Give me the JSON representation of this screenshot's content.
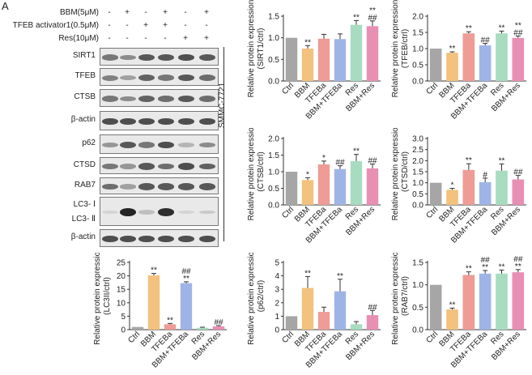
{
  "panel_letter": "A",
  "treatments": [
    {
      "label": "BBM(5μM)",
      "signs": [
        "-",
        "+",
        "-",
        "+",
        "-",
        "+"
      ]
    },
    {
      "label": "TFEB activator1(0.5μM)",
      "signs": [
        "-",
        "-",
        "+",
        "+",
        "-",
        "-"
      ]
    },
    {
      "label": "Res(10μM)",
      "signs": [
        "-",
        "-",
        "-",
        "-",
        "+",
        "+"
      ]
    }
  ],
  "blots": [
    {
      "label": "SIRT1",
      "intensity": [
        0.55,
        0.45,
        0.7,
        0.7,
        0.75,
        0.7
      ]
    },
    {
      "label": "TFEB",
      "intensity": [
        0.5,
        0.35,
        0.65,
        0.55,
        0.7,
        0.6
      ]
    },
    {
      "label": "CTSB",
      "intensity": [
        0.55,
        0.45,
        0.65,
        0.6,
        0.7,
        0.6
      ]
    },
    {
      "label": "β-actin",
      "intensity": [
        0.75,
        0.75,
        0.75,
        0.75,
        0.75,
        0.75
      ]
    },
    {
      "label": "p62",
      "intensity": [
        0.4,
        0.7,
        0.55,
        0.75,
        0.25,
        0.45
      ]
    },
    {
      "label": "CTSD",
      "intensity": [
        0.55,
        0.4,
        0.7,
        0.6,
        0.75,
        0.65
      ]
    },
    {
      "label": "RAB7",
      "intensity": [
        0.6,
        0.35,
        0.7,
        0.7,
        0.7,
        0.7
      ]
    },
    {
      "label": "LC3- Ⅰ\nLC3- Ⅱ",
      "intensity": [
        0.1,
        0.95,
        0.2,
        0.9,
        0.1,
        0.15
      ]
    },
    {
      "label": "β-actin",
      "intensity": [
        0.75,
        0.75,
        0.75,
        0.75,
        0.75,
        0.75
      ]
    }
  ],
  "cell_line": "SMMC-7721",
  "colors": [
    "#a6a6a6",
    "#f2c27e",
    "#ee9c95",
    "#9fb4e6",
    "#a8dcc0",
    "#e88fb4"
  ],
  "chart_data": [
    {
      "type": "bar",
      "categories": [
        "Ctrl",
        "BBM",
        "TFEBa",
        "BBM+TFEBa",
        "Res",
        "BBM+Res"
      ],
      "values": [
        1.0,
        0.75,
        0.98,
        0.97,
        1.3,
        1.27
      ],
      "errors": [
        0,
        0.07,
        0.1,
        0.12,
        0.1,
        0.12
      ],
      "marks": [
        "",
        "**",
        "",
        "",
        "**",
        "**\n##"
      ],
      "ylabel": "Relative protein expression\n(SIRT1/ctrl)",
      "ylim": [
        0,
        1.5
      ],
      "yticks": [
        "0.0",
        "0.5",
        "1.0",
        "1.5"
      ]
    },
    {
      "type": "bar",
      "categories": [
        "Ctrl",
        "BBM",
        "TFEBa",
        "BBM+TFEBa",
        "Res",
        "BBM+Res"
      ],
      "values": [
        1.0,
        0.87,
        1.47,
        1.1,
        1.47,
        1.33
      ],
      "errors": [
        0,
        0.03,
        0.05,
        0.06,
        0.07,
        0.06
      ],
      "marks": [
        "",
        "**",
        "**",
        "##",
        "**",
        "**\n##"
      ],
      "ylabel": "Relative protein expression\n(TFEB/ctrl)",
      "ylim": [
        0,
        2.0
      ],
      "yticks": [
        "0.0",
        "0.5",
        "1.0",
        "1.5",
        "2.0"
      ]
    },
    {
      "type": "bar",
      "categories": [
        "Ctrl",
        "BBM",
        "TFEBa",
        "BBM+TFEBa",
        "Res",
        "BBM+Res"
      ],
      "values": [
        1.0,
        0.75,
        1.22,
        1.08,
        1.32,
        1.1
      ],
      "errors": [
        0,
        0.07,
        0.1,
        0.1,
        0.2,
        0.13
      ],
      "marks": [
        "",
        "*",
        "*",
        "##",
        "**",
        "##"
      ],
      "ylabel": "Relative protein expression\n(CTSB/ctrl)",
      "ylim": [
        0,
        2.0
      ],
      "yticks": [
        "0.0",
        "0.5",
        "1.0",
        "1.5",
        "2.0"
      ]
    },
    {
      "type": "bar",
      "categories": [
        "Ctrl",
        "BBM",
        "TFEBa",
        "BBM+TFEBa",
        "Res",
        "BBM+Res"
      ],
      "values": [
        1.0,
        0.68,
        1.58,
        1.03,
        1.55,
        1.15
      ],
      "errors": [
        0,
        0.07,
        0.28,
        0.18,
        0.3,
        0.18
      ],
      "marks": [
        "",
        "*",
        "**",
        "#",
        "**",
        "##"
      ],
      "ylabel": "Relative protein expression\n(CTSD/ctrl)",
      "ylim": [
        0,
        3.0
      ],
      "yticks": [
        "0.0",
        "0.5",
        "1.0",
        "1.5",
        "2.0",
        "2.5",
        "3.0"
      ]
    },
    {
      "type": "bar",
      "categories": [
        "Ctrl",
        "BBM",
        "TFEBa",
        "BBM+TFEBa",
        "Res",
        "BBM+Res"
      ],
      "values": [
        1.0,
        20.2,
        2.0,
        17.3,
        0.7,
        1.2
      ],
      "errors": [
        0,
        0.7,
        0.3,
        0.5,
        0.2,
        0.3
      ],
      "marks": [
        "",
        "**",
        "**",
        "##\n**",
        "",
        "##"
      ],
      "ylabel": "Relative protein expression\n(LC3II/ctrl)",
      "ylim": [
        0,
        25
      ],
      "yticks": [
        "0",
        "5",
        "10",
        "15",
        "20",
        "25"
      ]
    },
    {
      "type": "bar",
      "categories": [
        "Ctrl",
        "BBM",
        "TFEBa",
        "BBM+TFEBa",
        "Res",
        "BBM+Res"
      ],
      "values": [
        1.0,
        3.1,
        1.32,
        2.85,
        0.4,
        1.08
      ],
      "errors": [
        0,
        0.85,
        0.35,
        0.9,
        0.2,
        0.35
      ],
      "marks": [
        "",
        "**",
        "",
        "**",
        "",
        "##"
      ],
      "ylabel": "Relative protein expression\n(p62/ctrl)",
      "ylim": [
        0,
        5
      ],
      "yticks": [
        "0",
        "1",
        "2",
        "3",
        "4",
        "5"
      ]
    },
    {
      "type": "bar",
      "categories": [
        "Ctrl",
        "BBM",
        "TFEBa",
        "BBM+TFEBa",
        "Res",
        "BBM+Res"
      ],
      "values": [
        1.0,
        0.45,
        1.22,
        1.25,
        1.25,
        1.28
      ],
      "errors": [
        0,
        0.03,
        0.07,
        0.07,
        0.08,
        0.06
      ],
      "marks": [
        "",
        "**",
        "**",
        "##\n**",
        "**",
        "##\n**"
      ],
      "ylabel": "Relative protein expression\n(RAB7/ctrl)",
      "ylim": [
        0,
        1.5
      ],
      "yticks": [
        "0.0",
        "0.5",
        "1.0",
        "1.5"
      ]
    }
  ]
}
